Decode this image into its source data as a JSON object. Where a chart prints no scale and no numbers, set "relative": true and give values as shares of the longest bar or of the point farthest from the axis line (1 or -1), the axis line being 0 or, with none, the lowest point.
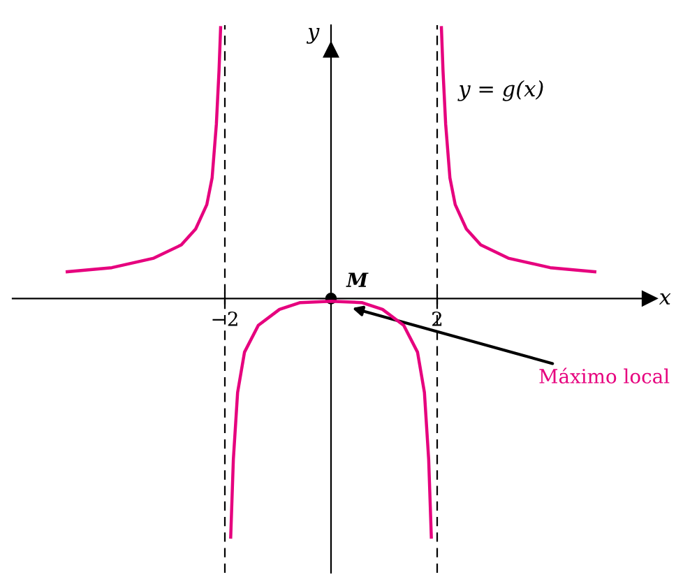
{
  "chart_data": {
    "type": "line",
    "relative": true,
    "xlabel": "x",
    "ylabel": "y",
    "xlim": [
      -6,
      6
    ],
    "xticks": [
      {
        "value": -2,
        "label": "−2"
      },
      2
    ],
    "series": [
      {
        "color": "#e6007e",
        "x": [
          -4.97,
          -4.13,
          -3.34,
          -2.82,
          -2.55,
          -2.34,
          -2.24,
          -2.16,
          -2.11,
          -2.08
        ],
        "values": [
          0.099,
          0.114,
          0.149,
          0.198,
          0.257,
          0.347,
          0.446,
          0.644,
          0.842,
          1.0
        ]
      },
      {
        "color": "#e6007e",
        "x": [
          -1.89,
          -1.84,
          -1.76,
          -1.63,
          -1.37,
          -0.97,
          -0.58,
          0,
          0.58,
          0.97,
          1.37,
          1.63,
          1.76,
          1.84,
          1.89
        ],
        "values": [
          -0.881,
          -0.594,
          -0.347,
          -0.198,
          -0.099,
          -0.04,
          -0.015,
          -0.01,
          -0.015,
          -0.04,
          -0.099,
          -0.198,
          -0.347,
          -0.594,
          -0.881
        ]
      },
      {
        "color": "#e6007e",
        "x": [
          2.08,
          2.11,
          2.16,
          2.24,
          2.34,
          2.55,
          2.82,
          3.34,
          4.13,
          4.97
        ],
        "values": [
          1.0,
          0.842,
          0.644,
          0.446,
          0.347,
          0.257,
          0.198,
          0.149,
          0.114,
          0.099
        ]
      }
    ],
    "ref_lines": [
      {
        "axis": "x",
        "value": -2,
        "color": "#000000",
        "line_style": "dashed"
      },
      {
        "axis": "x",
        "value": 2,
        "color": "#000000",
        "line_style": "dashed"
      }
    ],
    "annotations": [
      "y = g(x)",
      {
        "text": "M",
        "x": 0,
        "y": 0
      },
      {
        "text": "Máximo local",
        "x": 0.4,
        "y": -0.035
      }
    ],
    "grid": false,
    "marker": "none",
    "line_style": "solid"
  }
}
